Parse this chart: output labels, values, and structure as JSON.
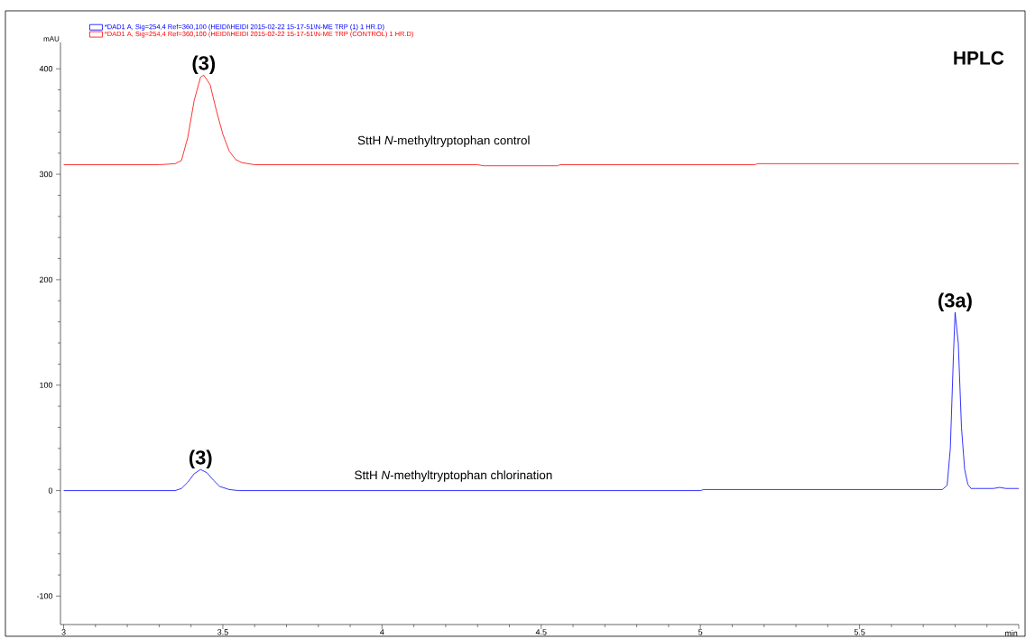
{
  "chart_data": {
    "type": "line",
    "title": "HPLC",
    "xlabel": "min",
    "ylabel": "mAU",
    "xlim": [
      2.99,
      6.0
    ],
    "ylim": [
      -127,
      425
    ],
    "xticks": [
      3,
      3.5,
      4,
      4.5,
      5,
      5.5,
      {
        "value": 6,
        "label": null
      }
    ],
    "yticks": [
      -100,
      0,
      100,
      200,
      300,
      400
    ],
    "grid": false,
    "legend": "top left",
    "line_style": "solid",
    "series": [
      {
        "name": "*DAD1 A, Sig=254,4 Ref=360,100 (HEIDI\\HEIDI 2015-02-22 15-17-51\\N-ME TRP (1) 1 HR.D)",
        "color": "#0000ff",
        "x": [
          3.0,
          3.35,
          3.37,
          3.39,
          3.41,
          3.43,
          3.45,
          3.47,
          3.49,
          3.52,
          3.55,
          5.0,
          5.01,
          5.76,
          5.775,
          5.785,
          5.795,
          5.8,
          5.81,
          5.82,
          5.83,
          5.84,
          5.85,
          5.88,
          5.92,
          5.94,
          5.96,
          6.0
        ],
        "values": [
          0,
          0,
          2,
          8,
          16,
          20,
          17,
          10,
          4,
          1,
          0,
          0,
          1,
          1,
          5,
          40,
          130,
          169,
          140,
          60,
          20,
          6,
          2,
          2,
          2,
          3,
          2,
          2
        ]
      },
      {
        "name": "*DAD1 A, Sig=254,4 Ref=360,100 (HEIDI\\HEIDI 2015-02-22 15-17-51\\N-ME TRP (CONTROL) 1 HR.D)",
        "color": "#ff0000",
        "x": [
          3.0,
          3.3,
          3.35,
          3.37,
          3.39,
          3.41,
          3.43,
          3.44,
          3.46,
          3.48,
          3.5,
          3.52,
          3.54,
          3.56,
          3.6,
          4.3,
          4.32,
          4.55,
          4.56,
          5.17,
          5.18,
          6.0
        ],
        "values": [
          309,
          309,
          310,
          313,
          335,
          370,
          392,
          394,
          385,
          360,
          338,
          322,
          314,
          311,
          309,
          309,
          308,
          308,
          309,
          309,
          310,
          310
        ]
      }
    ],
    "annotations": [
      {
        "text": "(3)",
        "x": 3.44,
        "y": 394
      },
      {
        "text": "(3)",
        "x": 3.43,
        "y": 20
      },
      {
        "text": "(3a)",
        "x": 5.8,
        "y": 169
      },
      "SttH *N*-methyltryptophan control",
      "SttH *N*-methyltryptophan chlorination"
    ]
  }
}
